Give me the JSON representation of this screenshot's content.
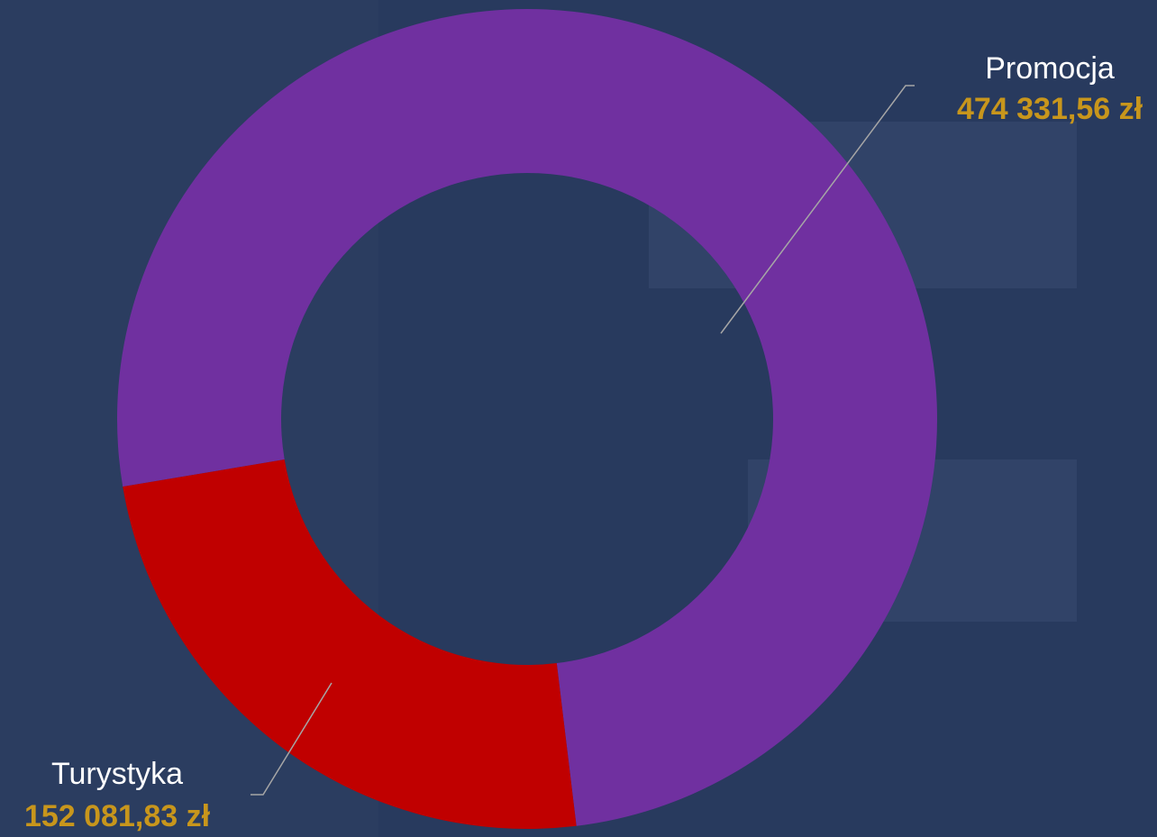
{
  "chart_data": {
    "type": "donut",
    "categories": [
      "Promocja",
      "Turystyka"
    ],
    "values": [
      474331.56,
      152081.83
    ],
    "value_labels": [
      "474 331,56 zł",
      "152 081,83 zł"
    ],
    "colors": [
      "#7030a0",
      "#c00000"
    ]
  }
}
